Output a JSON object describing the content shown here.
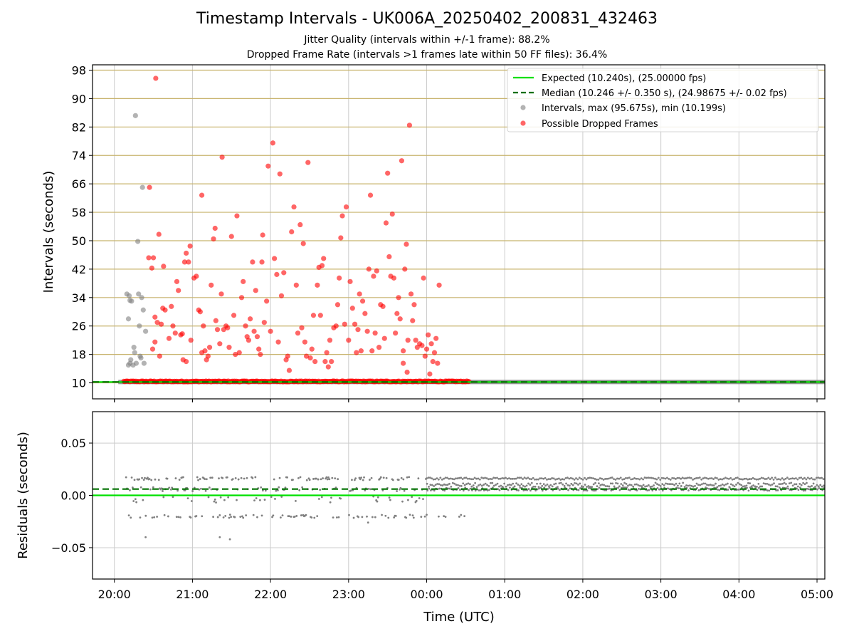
{
  "figure": {
    "title": "Timestamp Intervals - UK006A_20250402_200831_432463",
    "subtitle_1": "Jitter Quality (intervals within +/-1 frame): 88.2%",
    "subtitle_2": "Dropped Frame Rate (intervals >1 frames late within 50 FF files): 36.4%",
    "xlabel": "Time (UTC)"
  },
  "colors": {
    "expected": "#00e000",
    "median": "#007000",
    "intervals": "#808080",
    "dropped": "#ff0000",
    "interval_hgrid": "#c8b46e",
    "grid": "#cccccc"
  },
  "chart_data": [
    {
      "type": "scatter",
      "panel": "top",
      "ylabel": "Intervals (seconds)",
      "x_unit": "hours after 20:00 UTC",
      "xlim": [
        -0.28,
        9.1
      ],
      "ylim": [
        5.5,
        99.5
      ],
      "x_ticks": [
        0,
        1,
        2,
        3,
        4,
        5,
        6,
        7,
        8,
        9
      ],
      "x_tick_labels": [
        "20:00",
        "21:00",
        "22:00",
        "23:00",
        "00:00",
        "01:00",
        "02:00",
        "03:00",
        "04:00",
        "05:00"
      ],
      "y_ticks": [
        10,
        18,
        26,
        34,
        42,
        50,
        58,
        66,
        74,
        82,
        90,
        98
      ],
      "grid": true,
      "legend_position": "top-right",
      "legend": [
        "Expected (10.240s), (25.00000 fps)",
        "Median (10.246 +/- 0.350 s), (24.98675 +/- 0.02 fps)",
        "Intervals, max (95.675s), min (10.199s)",
        "Possible Dropped Frames"
      ],
      "expected_line": 10.24,
      "median_line": 10.246,
      "baseline_grey_band": {
        "x_range": [
          0.05,
          9.1
        ],
        "y": 10.24
      },
      "dropped_baseline_band": {
        "x_range": [
          0.12,
          4.55
        ],
        "y": 10.4
      },
      "grey_points": [
        [
          0.16,
          35.0
        ],
        [
          0.18,
          28.0
        ],
        [
          0.19,
          34.5
        ],
        [
          0.2,
          33.2
        ],
        [
          0.21,
          16.5
        ],
        [
          0.22,
          33.0
        ],
        [
          0.18,
          15.0
        ],
        [
          0.2,
          15.5
        ],
        [
          0.24,
          15.0
        ],
        [
          0.25,
          20.0
        ],
        [
          0.26,
          18.5
        ],
        [
          0.28,
          15.5
        ],
        [
          0.27,
          85.2
        ],
        [
          0.3,
          49.8
        ],
        [
          0.31,
          35.0
        ],
        [
          0.32,
          26.0
        ],
        [
          0.33,
          17.5
        ],
        [
          0.34,
          17.0
        ],
        [
          0.35,
          34.0
        ],
        [
          0.36,
          65.0
        ],
        [
          0.37,
          30.5
        ],
        [
          0.38,
          15.5
        ],
        [
          0.4,
          24.5
        ]
      ],
      "dropped_points": [
        [
          0.53,
          95.7
        ],
        [
          0.45,
          65.0
        ],
        [
          0.57,
          51.8
        ],
        [
          0.44,
          45.2
        ],
        [
          0.5,
          45.2
        ],
        [
          0.63,
          42.8
        ],
        [
          0.48,
          42.3
        ],
        [
          0.62,
          31.0
        ],
        [
          0.65,
          30.5
        ],
        [
          0.52,
          28.5
        ],
        [
          0.6,
          26.5
        ],
        [
          0.55,
          27.0
        ],
        [
          0.58,
          17.5
        ],
        [
          0.52,
          21.5
        ],
        [
          0.49,
          19.5
        ],
        [
          0.7,
          22.5
        ],
        [
          0.75,
          26.0
        ],
        [
          0.73,
          31.5
        ],
        [
          0.78,
          24.0
        ],
        [
          0.8,
          38.5
        ],
        [
          0.82,
          36.0
        ],
        [
          0.85,
          23.5
        ],
        [
          0.87,
          23.8
        ],
        [
          0.9,
          44.0
        ],
        [
          0.92,
          46.5
        ],
        [
          0.95,
          44.0
        ],
        [
          0.97,
          48.5
        ],
        [
          0.88,
          16.5
        ],
        [
          0.92,
          16.0
        ],
        [
          0.98,
          22.0
        ],
        [
          1.02,
          39.5
        ],
        [
          1.05,
          40.0
        ],
        [
          1.08,
          30.5
        ],
        [
          1.1,
          30.0
        ],
        [
          1.12,
          62.8
        ],
        [
          1.14,
          26.0
        ],
        [
          1.12,
          18.5
        ],
        [
          1.16,
          19.0
        ],
        [
          1.18,
          16.5
        ],
        [
          1.2,
          17.5
        ],
        [
          1.22,
          20.0
        ],
        [
          1.24,
          37.5
        ],
        [
          1.27,
          50.5
        ],
        [
          1.29,
          53.5
        ],
        [
          1.3,
          27.5
        ],
        [
          1.32,
          25.0
        ],
        [
          1.35,
          21.0
        ],
        [
          1.37,
          35.0
        ],
        [
          1.38,
          73.5
        ],
        [
          1.4,
          25.0
        ],
        [
          1.43,
          26.0
        ],
        [
          1.45,
          25.5
        ],
        [
          1.47,
          20.0
        ],
        [
          1.5,
          51.2
        ],
        [
          1.53,
          29.0
        ],
        [
          1.55,
          18.0
        ],
        [
          1.57,
          57.0
        ],
        [
          1.6,
          18.5
        ],
        [
          1.63,
          34.0
        ],
        [
          1.65,
          38.5
        ],
        [
          1.68,
          26.0
        ],
        [
          1.7,
          23.0
        ],
        [
          1.72,
          22.0
        ],
        [
          1.74,
          28.0
        ],
        [
          1.77,
          44.0
        ],
        [
          1.79,
          24.5
        ],
        [
          1.81,
          36.0
        ],
        [
          1.83,
          23.0
        ],
        [
          1.85,
          19.5
        ],
        [
          1.87,
          18.0
        ],
        [
          1.89,
          44.0
        ],
        [
          1.9,
          51.6
        ],
        [
          1.92,
          27.0
        ],
        [
          1.95,
          33.0
        ],
        [
          1.97,
          71.0
        ],
        [
          2.0,
          24.5
        ],
        [
          2.03,
          77.5
        ],
        [
          2.05,
          45.0
        ],
        [
          2.08,
          40.5
        ],
        [
          2.1,
          21.5
        ],
        [
          2.12,
          68.8
        ],
        [
          2.14,
          34.5
        ],
        [
          2.17,
          41.0
        ],
        [
          2.2,
          16.5
        ],
        [
          2.22,
          17.5
        ],
        [
          2.24,
          13.5
        ],
        [
          2.27,
          52.5
        ],
        [
          2.3,
          59.5
        ],
        [
          2.33,
          37.5
        ],
        [
          2.35,
          24.0
        ],
        [
          2.38,
          54.5
        ],
        [
          2.4,
          25.5
        ],
        [
          2.42,
          49.2
        ],
        [
          2.44,
          21.5
        ],
        [
          2.46,
          17.5
        ],
        [
          2.48,
          72.0
        ],
        [
          2.51,
          17.0
        ],
        [
          2.53,
          19.5
        ],
        [
          2.55,
          29.0
        ],
        [
          2.57,
          16.0
        ],
        [
          2.6,
          37.5
        ],
        [
          2.62,
          42.5
        ],
        [
          2.64,
          29.0
        ],
        [
          2.66,
          43.0
        ],
        [
          2.68,
          45.0
        ],
        [
          2.7,
          16.0
        ],
        [
          2.72,
          18.5
        ],
        [
          2.74,
          14.5
        ],
        [
          2.76,
          22.0
        ],
        [
          2.78,
          16.0
        ],
        [
          2.81,
          25.5
        ],
        [
          2.84,
          26.0
        ],
        [
          2.86,
          32.0
        ],
        [
          2.88,
          39.5
        ],
        [
          2.9,
          50.8
        ],
        [
          2.92,
          57.0
        ],
        [
          2.95,
          26.5
        ],
        [
          2.97,
          59.5
        ],
        [
          3.0,
          22.0
        ],
        [
          3.02,
          38.5
        ],
        [
          3.05,
          31.0
        ],
        [
          3.08,
          26.5
        ],
        [
          3.1,
          18.5
        ],
        [
          3.12,
          25.0
        ],
        [
          3.14,
          35.0
        ],
        [
          3.16,
          19.0
        ],
        [
          3.18,
          33.0
        ],
        [
          3.21,
          29.5
        ],
        [
          3.24,
          24.5
        ],
        [
          3.26,
          42.0
        ],
        [
          3.28,
          62.8
        ],
        [
          3.3,
          19.0
        ],
        [
          3.32,
          40.0
        ],
        [
          3.34,
          24.0
        ],
        [
          3.36,
          41.5
        ],
        [
          3.39,
          20.0
        ],
        [
          3.41,
          32.0
        ],
        [
          3.44,
          31.5
        ],
        [
          3.46,
          22.5
        ],
        [
          3.48,
          55.0
        ],
        [
          3.5,
          69.0
        ],
        [
          3.52,
          45.5
        ],
        [
          3.54,
          40.0
        ],
        [
          3.56,
          57.5
        ],
        [
          3.58,
          39.5
        ],
        [
          3.6,
          24.0
        ],
        [
          3.62,
          29.5
        ],
        [
          3.64,
          34.0
        ],
        [
          3.66,
          28.0
        ],
        [
          3.68,
          72.5
        ],
        [
          3.7,
          19.0
        ],
        [
          3.72,
          42.0
        ],
        [
          3.74,
          49.0
        ],
        [
          3.76,
          22.0
        ],
        [
          3.78,
          82.5
        ],
        [
          3.8,
          35.0
        ],
        [
          3.82,
          27.5
        ],
        [
          3.84,
          32.0
        ],
        [
          3.86,
          22.0
        ],
        [
          3.75,
          13.0
        ],
        [
          3.7,
          15.5
        ],
        [
          3.88,
          20.0
        ],
        [
          3.91,
          21.0
        ],
        [
          3.94,
          20.5
        ],
        [
          3.96,
          39.5
        ],
        [
          3.98,
          17.5
        ],
        [
          4.0,
          19.5
        ],
        [
          4.02,
          23.5
        ],
        [
          4.04,
          12.5
        ],
        [
          4.06,
          21.0
        ],
        [
          4.08,
          16.0
        ],
        [
          4.1,
          18.5
        ],
        [
          4.12,
          22.5
        ],
        [
          4.14,
          15.5
        ],
        [
          4.16,
          37.5
        ]
      ],
      "note_dropped_dense_at_baseline": true
    },
    {
      "type": "scatter",
      "panel": "bottom",
      "ylabel": "Residuals (seconds)",
      "xlim": [
        -0.28,
        9.1
      ],
      "ylim": [
        -0.08,
        0.08
      ],
      "y_ticks": [
        0.05,
        0.0,
        -0.05
      ],
      "y_tick_labels": [
        "0.05",
        "0.00",
        "−0.05"
      ],
      "x_tick_labels": [
        "20:00",
        "21:00",
        "22:00",
        "23:00",
        "00:00",
        "01:00",
        "02:00",
        "03:00",
        "04:00",
        "05:00"
      ],
      "expected_line": 0.0,
      "median_line": 0.006,
      "residual_levels": [
        0.016,
        0.006,
        -0.004,
        -0.02
      ],
      "residual_extremes": [
        [
          0.4,
          -0.04
        ],
        [
          1.35,
          -0.04
        ],
        [
          1.48,
          -0.042
        ],
        [
          3.25,
          -0.026
        ]
      ],
      "grid": true
    }
  ]
}
